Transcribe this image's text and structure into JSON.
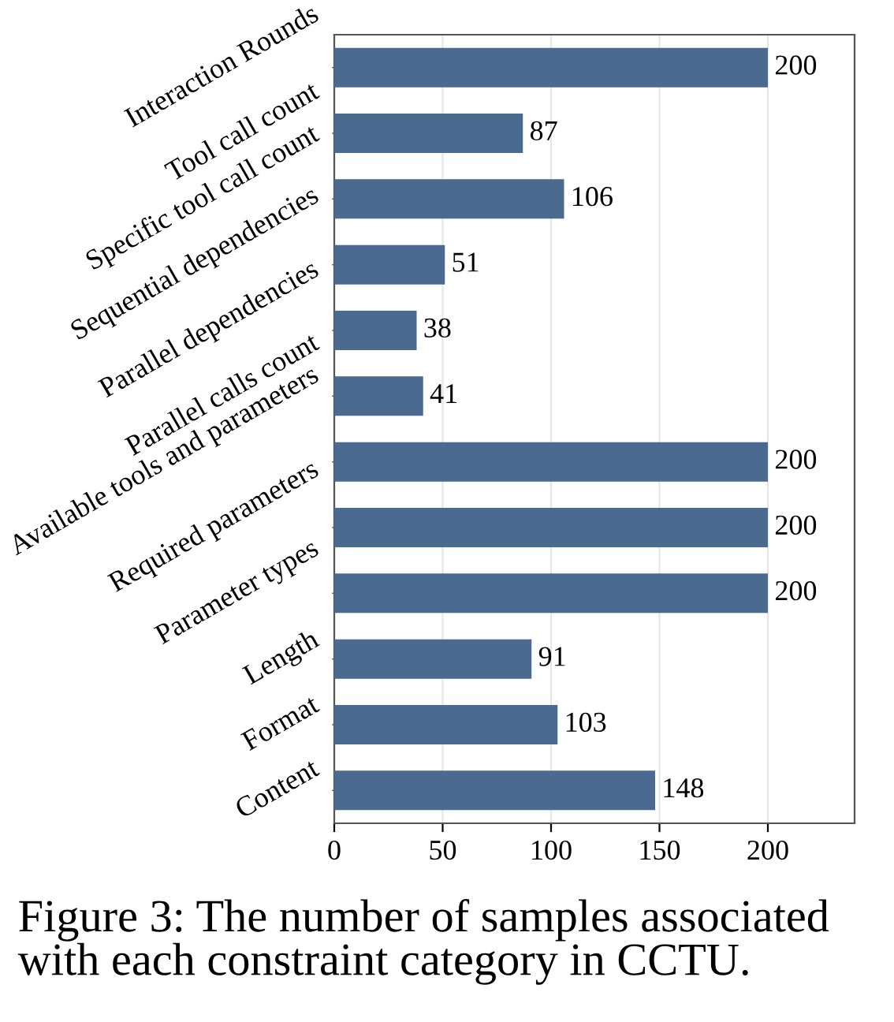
{
  "chart_data": {
    "type": "bar",
    "orientation": "horizontal",
    "categories": [
      "Interaction Rounds",
      "Tool call count",
      "Specific tool call count",
      "Sequential dependencies",
      "Parallel dependencies",
      "Parallel calls count",
      "Available tools and parameters",
      "Required parameters",
      "Parameter types",
      "Length",
      "Format",
      "Content"
    ],
    "values": [
      200,
      87,
      106,
      51,
      38,
      41,
      200,
      200,
      200,
      91,
      103,
      148
    ],
    "color": "#4a6a8f",
    "xlim": [
      0,
      240
    ],
    "xticks": [
      0,
      50,
      100,
      150,
      200
    ],
    "grid": "x",
    "data_labels": true,
    "annotations": [
      "Figure 3: The number of samples associated with each constraint category in CCTU."
    ]
  }
}
